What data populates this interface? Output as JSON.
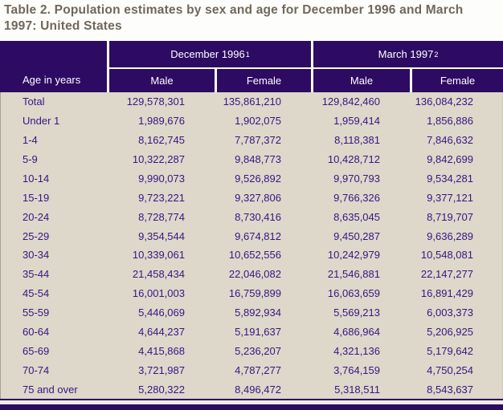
{
  "title": "Table 2. Population estimates by sex and age for December 1996 and March 1997: United States",
  "table": {
    "corner_header": "Age in years",
    "groups": [
      {
        "label": "December 1996",
        "footnote_marker": "1",
        "columns": [
          "Male",
          "Female"
        ]
      },
      {
        "label": "March 1997",
        "footnote_marker": "2",
        "columns": [
          "Male",
          "Female"
        ]
      }
    ],
    "rows": [
      {
        "label": "Total",
        "values": [
          "129,578,301",
          "135,861,210",
          "129,842,460",
          "136,084,232"
        ]
      },
      {
        "label": "Under 1",
        "values": [
          "1,989,676",
          "1,902,075",
          "1,959,414",
          "1,856,886"
        ]
      },
      {
        "label": "1-4",
        "values": [
          "8,162,745",
          "7,787,372",
          "8,118,381",
          "7,846,632"
        ]
      },
      {
        "label": "5-9",
        "values": [
          "10,322,287",
          "9,848,773",
          "10,428,712",
          "9,842,699"
        ]
      },
      {
        "label": "10-14",
        "values": [
          "9,990,073",
          "9,526,892",
          "9,970,793",
          "9,534,281"
        ]
      },
      {
        "label": "15-19",
        "values": [
          "9,723,221",
          "9,327,806",
          "9,766,326",
          "9,377,121"
        ]
      },
      {
        "label": "20-24",
        "values": [
          "8,728,774",
          "8,730,416",
          "8,635,045",
          "8,719,707"
        ]
      },
      {
        "label": "25-29",
        "values": [
          "9,354,544",
          "9,674,812",
          "9,450,287",
          "9,636,289"
        ]
      },
      {
        "label": "30-34",
        "values": [
          "10,339,061",
          "10,652,556",
          "10,242,979",
          "10,548,081"
        ]
      },
      {
        "label": "35-44",
        "values": [
          "21,458,434",
          "22,046,082",
          "21,546,881",
          "22,147,277"
        ]
      },
      {
        "label": "45-54",
        "values": [
          "16,001,003",
          "16,759,899",
          "16,063,659",
          "16,891,429"
        ]
      },
      {
        "label": "55-59",
        "values": [
          "5,446,069",
          "5,892,934",
          "5,569,213",
          "6,003,373"
        ]
      },
      {
        "label": "60-64",
        "values": [
          "4,644,237",
          "5,191,637",
          "4,686,964",
          "5,206,925"
        ]
      },
      {
        "label": "65-69",
        "values": [
          "4,415,868",
          "5,236,207",
          "4,321,136",
          "5,179,642"
        ]
      },
      {
        "label": "70-74",
        "values": [
          "3,721,987",
          "4,787,277",
          "3,764,159",
          "4,750,254"
        ]
      },
      {
        "label": "75 and over",
        "values": [
          "5,280,322",
          "8,496,472",
          "5,318,511",
          "8,543,637"
        ]
      }
    ]
  },
  "colors": {
    "header_background": "#2d0b63",
    "body_background": "#ddd8ca",
    "data_text": "#3a1482",
    "title_text": "#6f675a",
    "divider": "#ffffff"
  }
}
